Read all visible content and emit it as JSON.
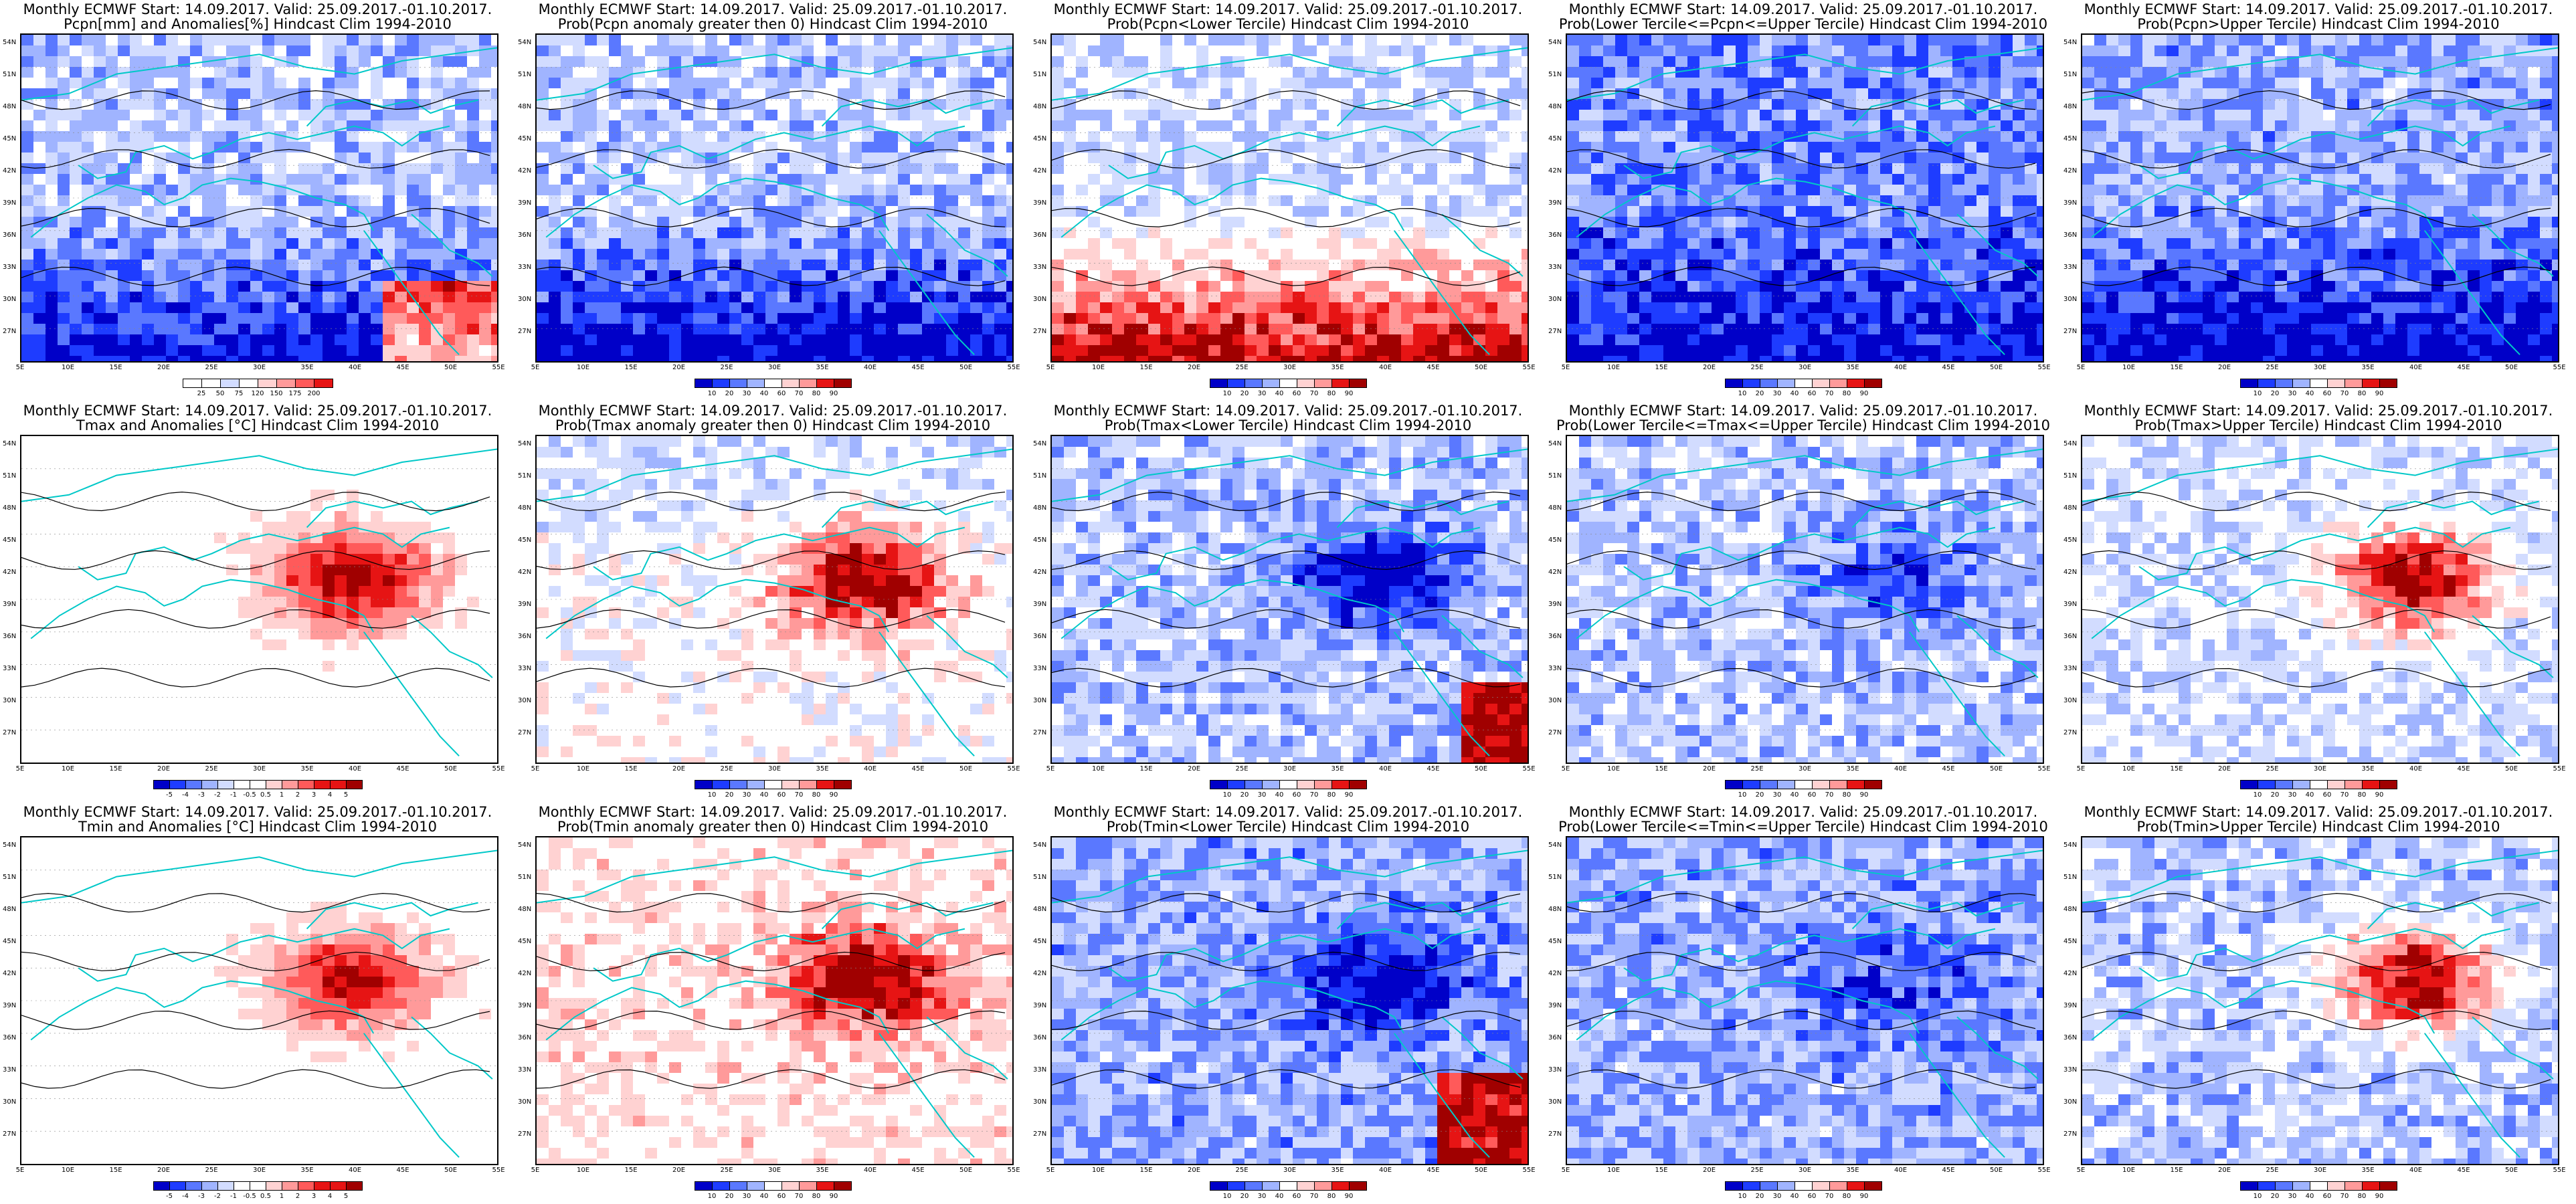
{
  "title_line": "Monthly ECMWF Start: 14.09.2017. Valid: 25.09.2017.-01.10.2017.",
  "lat_labels": [
    "54N",
    "51N",
    "48N",
    "45N",
    "42N",
    "39N",
    "36N",
    "33N",
    "30N",
    "27N"
  ],
  "lon_labels": [
    "5E",
    "10E",
    "15E",
    "20E",
    "25E",
    "30E",
    "35E",
    "40E",
    "45E",
    "50E",
    "55E"
  ],
  "colors": {
    "dark_blue": "#0000c8",
    "blue": "#1e3cff",
    "mid_blue": "#5a78ff",
    "light_blue": "#a0b4ff",
    "pale_blue": "#d2dcff",
    "white": "#ffffff",
    "pale_red": "#ffd2d2",
    "light_red": "#ff9a9a",
    "mid_red": "#ff5a5a",
    "red": "#e61414",
    "dark_red": "#a00000",
    "coast": "#00c8c8",
    "contour": "#000000"
  },
  "panels": [
    {
      "subtitle": "Pcpn[mm] and Anomalies[%] Hindcast Clim 1994-2010",
      "pattern": "pcpn_anom",
      "colorbar": [
        "25",
        "50",
        "75",
        "120",
        "150",
        "175",
        "200"
      ]
    },
    {
      "subtitle": "Prob(Pcpn anomaly greater then 0) Hindcast Clim 1994-2010",
      "pattern": "pcpn_prob_pos",
      "colorbar": [
        "10",
        "20",
        "30",
        "40",
        "60",
        "70",
        "80",
        "90"
      ]
    },
    {
      "subtitle": "Prob(Pcpn<Lower Tercile) Hindcast Clim 1994-2010",
      "pattern": "pcpn_lower",
      "colorbar": [
        "10",
        "20",
        "30",
        "40",
        "60",
        "70",
        "80",
        "90"
      ]
    },
    {
      "subtitle": "Prob(Lower Tercile<=Pcpn<=Upper Tercile) Hindcast Clim 1994-2010",
      "pattern": "pcpn_mid",
      "colorbar": [
        "10",
        "20",
        "30",
        "40",
        "60",
        "70",
        "80",
        "90"
      ]
    },
    {
      "subtitle": "Prob(Pcpn>Upper Tercile) Hindcast Clim 1994-2010",
      "pattern": "pcpn_upper",
      "colorbar": [
        "10",
        "20",
        "30",
        "40",
        "60",
        "70",
        "80",
        "90"
      ]
    },
    {
      "subtitle": "Tmax and Anomalies [°C] Hindcast Clim 1994-2010",
      "pattern": "t_anom",
      "colorbar": [
        "-5",
        "-4",
        "-3",
        "-2",
        "-1",
        "-0.5",
        "0.5",
        "1",
        "2",
        "3",
        "4",
        "5"
      ]
    },
    {
      "subtitle": "Prob(Tmax anomaly greater then 0) Hindcast Clim 1994-2010",
      "pattern": "t_prob_pos",
      "colorbar": [
        "10",
        "20",
        "30",
        "40",
        "60",
        "70",
        "80",
        "90"
      ]
    },
    {
      "subtitle": "Prob(Tmax<Lower Tercile) Hindcast Clim 1994-2010",
      "pattern": "t_lower",
      "colorbar": [
        "10",
        "20",
        "30",
        "40",
        "60",
        "70",
        "80",
        "90"
      ]
    },
    {
      "subtitle": "Prob(Lower Tercile<=Tmax<=Upper Tercile) Hindcast Clim 1994-2010",
      "pattern": "t_mid",
      "colorbar": [
        "10",
        "20",
        "30",
        "40",
        "60",
        "70",
        "80",
        "90"
      ]
    },
    {
      "subtitle": "Prob(Tmax>Upper Tercile) Hindcast Clim 1994-2010",
      "pattern": "t_upper",
      "colorbar": [
        "10",
        "20",
        "30",
        "40",
        "60",
        "70",
        "80",
        "90"
      ]
    },
    {
      "subtitle": "Tmin and Anomalies [°C] Hindcast Clim 1994-2010",
      "pattern": "tmin_anom",
      "colorbar": [
        "-5",
        "-4",
        "-3",
        "-2",
        "-1",
        "-0.5",
        "0.5",
        "1",
        "2",
        "3",
        "4",
        "5"
      ]
    },
    {
      "subtitle": "Prob(Tmin anomaly greater then 0) Hindcast Clim 1994-2010",
      "pattern": "tmin_prob_pos",
      "colorbar": [
        "10",
        "20",
        "30",
        "40",
        "60",
        "70",
        "80",
        "90"
      ]
    },
    {
      "subtitle": "Prob(Tmin<Lower Tercile) Hindcast Clim 1994-2010",
      "pattern": "tmin_lower",
      "colorbar": [
        "10",
        "20",
        "30",
        "40",
        "60",
        "70",
        "80",
        "90"
      ]
    },
    {
      "subtitle": "Prob(Lower Tercile<=Tmin<=Upper Tercile) Hindcast Clim 1994-2010",
      "pattern": "tmin_mid",
      "colorbar": [
        "10",
        "20",
        "30",
        "40",
        "60",
        "70",
        "80",
        "90"
      ]
    },
    {
      "subtitle": "Prob(Tmin>Upper Tercile) Hindcast Clim 1994-2010",
      "pattern": "tmin_upper",
      "colorbar": [
        "10",
        "20",
        "30",
        "40",
        "60",
        "70",
        "80",
        "90"
      ]
    }
  ]
}
